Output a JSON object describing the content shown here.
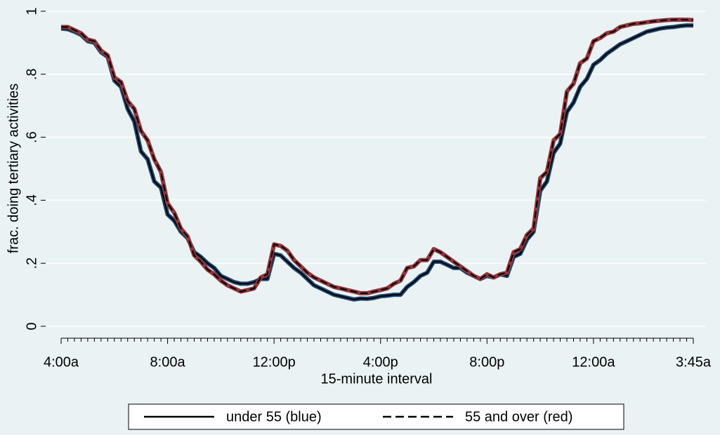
{
  "chart_data": {
    "type": "line",
    "xlabel": "15-minute interval",
    "ylabel": "frac. doing tertiary activities",
    "categories": [
      "4:00a",
      null,
      null,
      null,
      null,
      null,
      null,
      null,
      null,
      null,
      null,
      null,
      null,
      null,
      null,
      null,
      "8:00a",
      null,
      null,
      null,
      null,
      null,
      null,
      null,
      null,
      null,
      null,
      null,
      null,
      null,
      null,
      null,
      "12:00p",
      null,
      null,
      null,
      null,
      null,
      null,
      null,
      null,
      null,
      null,
      null,
      null,
      null,
      null,
      null,
      "4:00p",
      null,
      null,
      null,
      null,
      null,
      null,
      null,
      null,
      null,
      null,
      null,
      null,
      null,
      null,
      null,
      "8:00p",
      null,
      null,
      null,
      null,
      null,
      null,
      null,
      null,
      null,
      null,
      null,
      null,
      null,
      null,
      null,
      "12:00a",
      null,
      null,
      null,
      null,
      null,
      null,
      null,
      null,
      null,
      null,
      null,
      null,
      null,
      null,
      "3:45a"
    ],
    "series": [
      {
        "name": "under 55 (blue)",
        "color": "#1a476f",
        "dash": false,
        "values": [
          0.945,
          0.943,
          0.935,
          0.925,
          0.905,
          0.9,
          0.87,
          0.855,
          0.78,
          0.76,
          0.69,
          0.65,
          0.555,
          0.53,
          0.46,
          0.44,
          0.355,
          0.335,
          0.3,
          0.28,
          0.235,
          0.22,
          0.2,
          0.185,
          0.16,
          0.15,
          0.14,
          0.135,
          0.135,
          0.14,
          0.15,
          0.15,
          0.23,
          0.225,
          0.205,
          0.185,
          0.17,
          0.15,
          0.13,
          0.12,
          0.11,
          0.1,
          0.095,
          0.09,
          0.085,
          0.088,
          0.087,
          0.09,
          0.095,
          0.097,
          0.1,
          0.1,
          0.125,
          0.14,
          0.16,
          0.17,
          0.205,
          0.205,
          0.195,
          0.185,
          0.185,
          0.17,
          0.16,
          0.15,
          0.16,
          0.155,
          0.165,
          0.16,
          0.22,
          0.23,
          0.275,
          0.3,
          0.43,
          0.46,
          0.55,
          0.58,
          0.68,
          0.71,
          0.76,
          0.785,
          0.83,
          0.845,
          0.865,
          0.88,
          0.895,
          0.905,
          0.915,
          0.925,
          0.935,
          0.94,
          0.945,
          0.948,
          0.95,
          0.953,
          0.955,
          0.955
        ]
      },
      {
        "name": "55 and over (red)",
        "color": "#90353b",
        "dash": true,
        "values": [
          0.95,
          0.95,
          0.94,
          0.93,
          0.91,
          0.905,
          0.875,
          0.86,
          0.79,
          0.775,
          0.715,
          0.69,
          0.62,
          0.59,
          0.53,
          0.49,
          0.39,
          0.36,
          0.31,
          0.285,
          0.225,
          0.205,
          0.18,
          0.165,
          0.145,
          0.13,
          0.12,
          0.11,
          0.115,
          0.12,
          0.155,
          0.165,
          0.26,
          0.255,
          0.24,
          0.21,
          0.19,
          0.17,
          0.155,
          0.145,
          0.135,
          0.125,
          0.12,
          0.115,
          0.11,
          0.105,
          0.105,
          0.11,
          0.115,
          0.12,
          0.135,
          0.145,
          0.185,
          0.19,
          0.21,
          0.21,
          0.245,
          0.235,
          0.22,
          0.205,
          0.19,
          0.175,
          0.16,
          0.15,
          0.165,
          0.155,
          0.165,
          0.17,
          0.235,
          0.245,
          0.29,
          0.31,
          0.47,
          0.49,
          0.59,
          0.61,
          0.745,
          0.77,
          0.835,
          0.85,
          0.905,
          0.915,
          0.93,
          0.935,
          0.95,
          0.955,
          0.96,
          0.962,
          0.965,
          0.968,
          0.97,
          0.972,
          0.973,
          0.973,
          0.973,
          0.972
        ]
      }
    ],
    "ylim": [
      0,
      1
    ],
    "yticks": [
      0,
      {
        "value": 0.2,
        "label": ".2"
      },
      {
        "value": 0.4,
        "label": ".4"
      },
      {
        "value": 0.6,
        "label": ".6"
      },
      {
        "value": 0.8,
        "label": ".8"
      },
      1
    ],
    "grid": true,
    "legend": "bottom"
  }
}
